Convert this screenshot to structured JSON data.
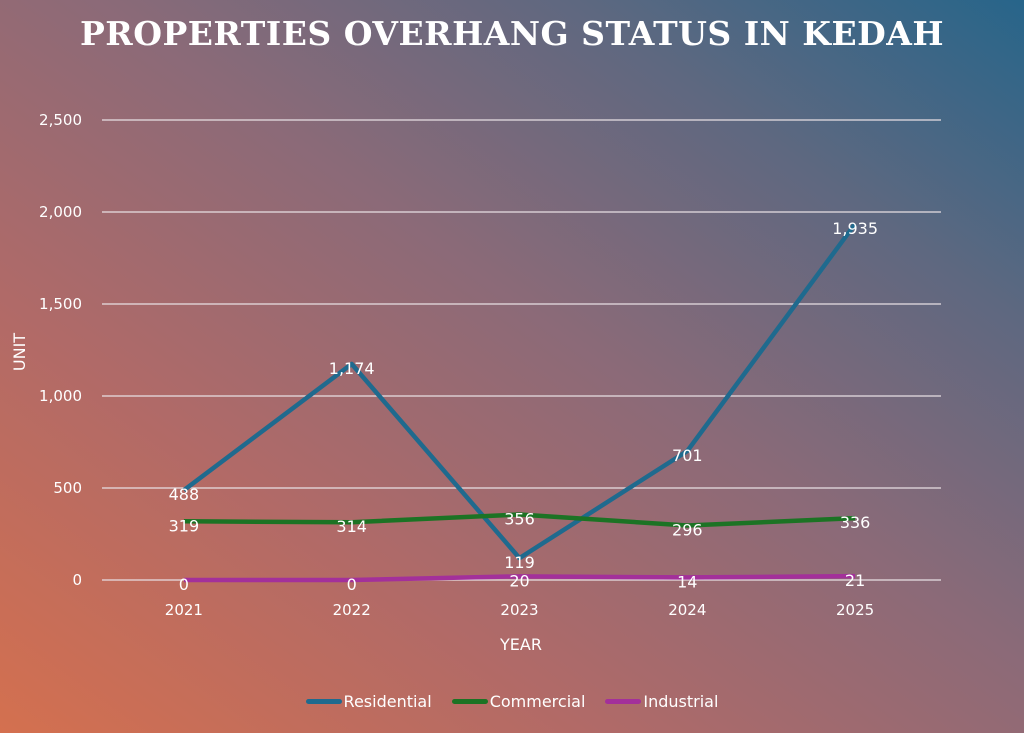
{
  "chart_data": {
    "type": "line",
    "title": "PROPERTIES OVERHANG STATUS IN KEDAH",
    "xlabel": "YEAR",
    "ylabel": "UNIT",
    "categories": [
      "2021",
      "2022",
      "2023",
      "2024",
      "2025"
    ],
    "ylim": [
      0,
      2500
    ],
    "yticks": [
      0,
      500,
      1000,
      1500,
      2000,
      2500
    ],
    "ytick_labels": [
      "0",
      "500",
      "1,000",
      "1,500",
      "2,000",
      "2,500"
    ],
    "grid": true,
    "legend": "bottom",
    "series": [
      {
        "name": "Residential",
        "color": "#1f6a8e",
        "values": [
          488,
          1174,
          119,
          701,
          1935
        ],
        "labels": [
          "488",
          "1,174",
          "119",
          "701",
          "1,935"
        ]
      },
      {
        "name": "Commercial",
        "color": "#1c7324",
        "values": [
          319,
          314,
          356,
          296,
          336
        ],
        "labels": [
          "319",
          "314",
          "356",
          "296",
          "336"
        ]
      },
      {
        "name": "Industrial",
        "color": "#a3309a",
        "values": [
          0,
          0,
          20,
          14,
          21
        ],
        "labels": [
          "0",
          "0",
          "20",
          "14",
          "21"
        ]
      }
    ]
  }
}
